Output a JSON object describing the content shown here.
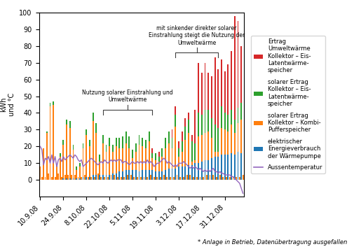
{
  "chart_data": {
    "type": "bar",
    "stacked": true,
    "y_label": "kWh\nund °C",
    "categories": [
      "10.9.08",
      null,
      null,
      null,
      null,
      null,
      null,
      null,
      null,
      null,
      null,
      null,
      null,
      null,
      "24.9.08",
      null,
      null,
      null,
      null,
      null,
      null,
      null,
      null,
      null,
      null,
      null,
      null,
      null,
      "8.10.08",
      null,
      null,
      null,
      null,
      null,
      null,
      null,
      null,
      null,
      null,
      null,
      null,
      null,
      "22.10.08",
      null,
      null,
      null,
      null,
      null,
      null,
      null,
      null,
      null,
      null,
      null,
      null,
      null,
      "5.11.08",
      null,
      null,
      null,
      null,
      null,
      null,
      null,
      null,
      null,
      null,
      null,
      null,
      null,
      "19.11.08",
      null,
      null,
      null,
      null,
      null,
      null,
      null,
      null,
      null,
      null,
      null,
      null,
      null,
      "3.12.08",
      null,
      null,
      null,
      null,
      null,
      null,
      null,
      null,
      null,
      null,
      null,
      null,
      null,
      "17.12.08",
      null,
      null,
      null,
      null,
      null,
      null,
      null,
      null,
      null,
      null,
      null,
      null,
      null,
      "31.12.08",
      null,
      null,
      null,
      null,
      null,
      null,
      null,
      null,
      null,
      null,
      null
    ],
    "series": [
      {
        "name": "elektrischer\nEnergieverbrauch\nder Wärmepumpe",
        "values": [
          0,
          0,
          0,
          0,
          0,
          0,
          0,
          0,
          0,
          0,
          0,
          0,
          0,
          0,
          1,
          0,
          1,
          0,
          1,
          0,
          1,
          0,
          1,
          0,
          1,
          0,
          2,
          0,
          2,
          0,
          2,
          0,
          3,
          0,
          3,
          0,
          3,
          0,
          3,
          0,
          3,
          0,
          3,
          0,
          4,
          0,
          4,
          0,
          5,
          0,
          5,
          0,
          6,
          0,
          6,
          0,
          6,
          0,
          6,
          0,
          5,
          0,
          6,
          0,
          6,
          0,
          6,
          0,
          6,
          0,
          5,
          0,
          5,
          0,
          5,
          0,
          6,
          0,
          7,
          0,
          7,
          0,
          7,
          0,
          8,
          0,
          8,
          0,
          8,
          0,
          9,
          0,
          9,
          0,
          10,
          0,
          10,
          0,
          11,
          0,
          12,
          0,
          12,
          0,
          13,
          0,
          14,
          0,
          14,
          0,
          15,
          0,
          15,
          0,
          15,
          0,
          16,
          0,
          15,
          0,
          17,
          0,
          16,
          0
        ]
      },
      {
        "name": "solarer Ertrag\nKollektor – Kombi-\nPufferspeicher",
        "values": [
          8,
          2,
          19,
          2,
          28,
          4,
          44,
          2,
          45,
          2,
          8,
          4,
          14,
          2,
          20,
          3,
          32,
          3,
          30,
          3,
          17,
          3,
          5,
          2,
          7,
          2,
          17,
          3,
          25,
          2,
          18,
          2,
          32,
          2,
          25,
          4,
          8,
          2,
          19,
          2,
          14,
          2,
          17,
          3,
          13,
          3,
          16,
          2,
          14,
          2,
          14,
          2,
          16,
          3,
          13,
          3,
          7,
          2,
          11,
          2,
          16,
          2,
          14,
          2,
          13,
          2,
          17,
          3,
          7,
          2,
          7,
          2,
          6,
          2,
          9,
          3,
          13,
          2,
          15,
          2,
          12,
          2,
          25,
          3,
          6,
          2,
          9,
          2,
          16,
          3,
          19,
          3,
          2,
          2,
          2,
          2,
          16,
          2,
          16,
          2,
          16,
          3,
          17,
          3,
          12,
          3,
          3,
          2,
          3,
          3,
          16,
          2,
          15,
          2,
          14,
          2,
          17,
          2,
          13,
          2,
          17,
          2,
          20,
          3
        ]
      },
      {
        "name": "solarer Ertrag\nKollektor – Eis-\nLatentwärme-\nspeicher",
        "values": [
          0,
          0,
          0,
          0,
          1,
          0,
          2,
          0,
          2,
          0,
          1,
          0,
          2,
          0,
          3,
          0,
          3,
          0,
          4,
          0,
          3,
          0,
          2,
          0,
          2,
          0,
          3,
          0,
          3,
          0,
          4,
          0,
          5,
          0,
          6,
          0,
          4,
          0,
          5,
          0,
          4,
          0,
          5,
          0,
          4,
          0,
          5,
          0,
          6,
          0,
          7,
          0,
          7,
          0,
          7,
          0,
          5,
          0,
          5,
          0,
          6,
          0,
          5,
          0,
          5,
          0,
          6,
          0,
          3,
          0,
          4,
          0,
          3,
          0,
          5,
          0,
          6,
          0,
          7,
          0,
          6,
          0,
          7,
          0,
          5,
          0,
          6,
          0,
          8,
          0,
          8,
          0,
          12,
          0,
          10,
          0,
          14,
          0,
          12,
          0,
          14,
          0,
          13,
          0,
          12,
          0,
          16,
          0,
          14,
          0,
          13,
          0,
          10,
          0,
          10,
          0,
          9,
          0,
          8,
          0,
          9,
          0,
          10,
          0
        ]
      },
      {
        "name": "Ertrag\nUmweltwärme\nKollektor – Eis-\nLatentwärme-\nspeicher",
        "values": [
          0,
          0,
          0,
          0,
          0,
          0,
          0,
          0,
          0,
          0,
          0,
          0,
          0,
          0,
          0,
          0,
          0,
          0,
          0,
          0,
          0,
          0,
          0,
          0,
          0,
          0,
          0,
          0,
          0,
          0,
          0,
          0,
          0,
          0,
          0,
          0,
          0,
          0,
          0,
          0,
          0,
          0,
          0,
          0,
          0,
          0,
          0,
          0,
          0,
          0,
          0,
          0,
          0,
          0,
          0,
          0,
          0,
          0,
          0,
          0,
          0,
          0,
          0,
          0,
          0,
          0,
          0,
          0,
          3,
          0,
          0,
          0,
          3,
          0,
          0,
          0,
          0,
          0,
          0,
          0,
          5,
          0,
          5,
          0,
          4,
          0,
          6,
          0,
          5,
          0,
          4,
          0,
          4,
          0,
          20,
          0,
          30,
          0,
          25,
          0,
          28,
          0,
          22,
          0,
          25,
          0,
          40,
          0,
          35,
          0,
          28,
          0,
          25,
          0,
          30,
          0,
          35,
          0,
          62,
          0,
          52,
          0,
          34,
          0
        ]
      },
      {
        "name": "Aussentemperatur",
        "type": "line",
        "values": [
          20,
          18,
          9,
          13,
          12,
          14,
          10,
          15,
          10,
          14,
          8,
          12,
          13,
          11,
          14,
          12,
          13,
          14,
          15,
          14,
          13,
          15,
          14,
          12,
          11,
          12,
          8,
          9,
          10,
          11,
          12,
          13,
          12,
          11,
          10,
          9,
          10,
          11,
          10,
          12,
          11,
          10,
          11,
          12,
          11,
          12,
          11,
          12,
          12,
          12,
          10,
          11,
          11,
          10,
          9,
          10,
          11,
          10,
          10,
          11,
          10,
          11,
          10,
          11,
          10,
          12,
          10,
          11,
          10,
          8,
          9,
          10,
          10,
          11,
          12,
          13,
          12,
          10,
          11,
          10,
          9,
          8,
          9,
          8,
          10,
          10,
          10,
          11,
          10,
          9,
          8,
          7,
          8,
          7,
          8,
          7,
          6,
          7,
          6,
          5,
          6,
          5,
          6,
          5,
          6,
          7,
          5,
          5,
          4,
          5,
          4,
          4,
          3,
          3,
          3,
          3,
          2,
          2,
          1,
          0,
          -1,
          -2,
          -5,
          -8
        ]
      }
    ],
    "ylim": [
      -10,
      100
    ],
    "yticks": [
      0,
      10,
      20,
      30,
      40,
      50,
      60,
      70,
      80,
      90,
      100
    ],
    "legend": "center left",
    "annotations": [
      "Nutzung solarer Einstrahlung und\nUmweltwärme",
      "mit sinkender direkter solarer\nEinstrahlung steigt die Nutzung der\nUmweltwärme"
    ],
    "footnote": "* Anlage in Betrieb, Datenübertragung ausgefallen"
  }
}
